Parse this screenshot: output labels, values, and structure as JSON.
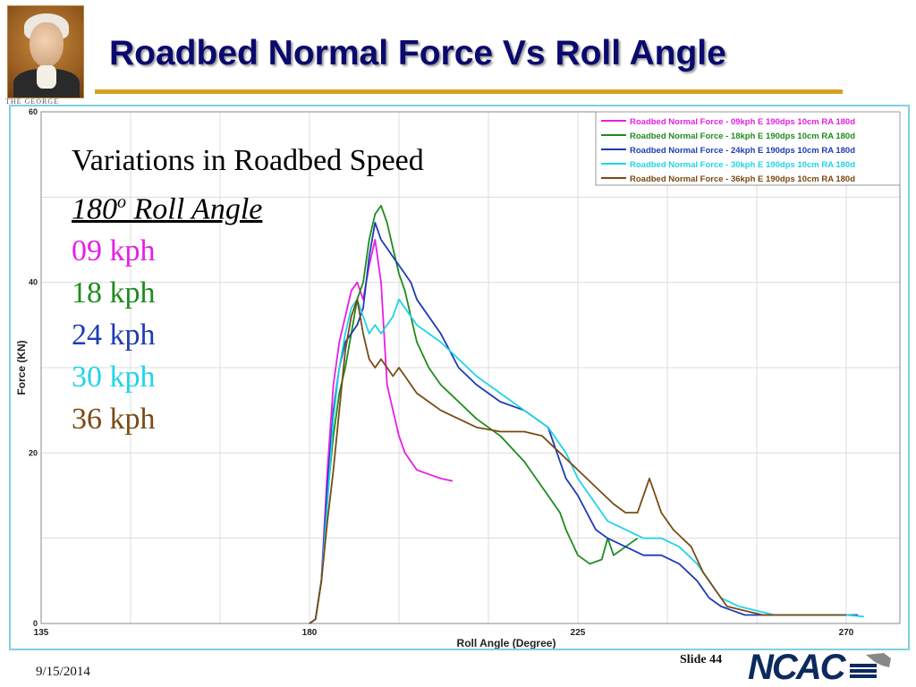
{
  "slide": {
    "title": "Roadbed Normal Force Vs Roll Angle",
    "logo_text": "THE GEORGE",
    "date": "9/15/2014",
    "slide_number": "Slide 44",
    "org_logo": "NCAC"
  },
  "annotation": {
    "line1": "Variations in Roadbed Speed",
    "line2_value": "180",
    "line2_sup": "o",
    "line2_rest": " Roll Angle",
    "speeds": [
      {
        "label": "09 kph",
        "color": "#e61ee6"
      },
      {
        "label": "18 kph",
        "color": "#1e8c1e"
      },
      {
        "label": "24 kph",
        "color": "#1e3cb4"
      },
      {
        "label": "30 kph",
        "color": "#20d4e8"
      },
      {
        "label": "36 kph",
        "color": "#7a4a14"
      }
    ]
  },
  "chart_data": {
    "type": "line",
    "title": "",
    "xlabel": "Roll Angle (Degree)",
    "ylabel": "Force (KN)",
    "xlim": [
      135,
      279
    ],
    "ylim": [
      0,
      60
    ],
    "xticks": [
      135,
      180,
      225,
      270
    ],
    "yticks": [
      0,
      20,
      40,
      60
    ],
    "grid": true,
    "legend_position": "top-right",
    "series": [
      {
        "name": "Roadbed Normal Force - 09kph E 190dps 10cm RA 180d",
        "color": "#e61ee6",
        "points": [
          [
            180,
            0
          ],
          [
            181,
            0.5
          ],
          [
            182,
            5
          ],
          [
            183,
            18
          ],
          [
            184,
            28
          ],
          [
            185,
            33
          ],
          [
            186,
            36
          ],
          [
            187,
            39
          ],
          [
            188,
            40
          ],
          [
            189,
            38
          ],
          [
            190,
            42
          ],
          [
            191,
            45
          ],
          [
            192,
            40
          ],
          [
            193,
            28
          ],
          [
            194,
            25
          ],
          [
            195,
            22
          ],
          [
            196,
            20
          ],
          [
            198,
            18
          ],
          [
            200,
            17.5
          ],
          [
            202,
            17
          ],
          [
            204,
            16.7
          ]
        ]
      },
      {
        "name": "Roadbed Normal Force - 18kph E 190dps 10cm RA 180d",
        "color": "#1e8c1e",
        "points": [
          [
            180,
            0
          ],
          [
            181,
            0.5
          ],
          [
            182,
            5
          ],
          [
            183,
            15
          ],
          [
            184,
            22
          ],
          [
            185,
            27
          ],
          [
            186,
            30
          ],
          [
            187,
            34
          ],
          [
            188,
            38
          ],
          [
            189,
            40
          ],
          [
            190,
            45
          ],
          [
            191,
            48
          ],
          [
            192,
            49
          ],
          [
            193,
            47
          ],
          [
            194,
            44
          ],
          [
            195,
            41
          ],
          [
            196,
            39
          ],
          [
            197,
            36
          ],
          [
            198,
            33
          ],
          [
            200,
            30
          ],
          [
            202,
            28
          ],
          [
            205,
            26
          ],
          [
            208,
            24
          ],
          [
            212,
            22
          ],
          [
            216,
            19
          ],
          [
            220,
            15
          ],
          [
            222,
            13
          ],
          [
            223,
            11
          ],
          [
            225,
            8
          ],
          [
            227,
            7
          ],
          [
            229,
            7.5
          ],
          [
            230,
            10
          ],
          [
            231,
            8
          ],
          [
            233,
            9
          ],
          [
            235,
            10
          ]
        ]
      },
      {
        "name": "Roadbed Normal Force - 24kph E 190dps 10cm RA 180d",
        "color": "#1e3cb4",
        "points": [
          [
            180,
            0
          ],
          [
            181,
            0.5
          ],
          [
            182,
            5
          ],
          [
            183,
            16
          ],
          [
            184,
            25
          ],
          [
            185,
            30
          ],
          [
            186,
            33
          ],
          [
            187,
            34
          ],
          [
            188,
            35
          ],
          [
            189,
            37
          ],
          [
            190,
            43
          ],
          [
            191,
            47
          ],
          [
            192,
            45
          ],
          [
            193,
            44
          ],
          [
            194,
            43
          ],
          [
            195,
            42
          ],
          [
            196,
            41
          ],
          [
            197,
            40
          ],
          [
            198,
            38
          ],
          [
            200,
            36
          ],
          [
            202,
            34
          ],
          [
            205,
            30
          ],
          [
            208,
            28
          ],
          [
            212,
            26
          ],
          [
            216,
            25
          ],
          [
            220,
            23
          ],
          [
            223,
            17
          ],
          [
            225,
            15
          ],
          [
            228,
            11
          ],
          [
            230,
            10
          ],
          [
            233,
            9
          ],
          [
            236,
            8
          ],
          [
            239,
            8
          ],
          [
            242,
            7
          ],
          [
            245,
            5
          ],
          [
            247,
            3
          ],
          [
            249,
            2
          ],
          [
            251,
            1.5
          ],
          [
            253,
            1
          ],
          [
            256,
            1
          ],
          [
            260,
            1
          ],
          [
            265,
            1
          ],
          [
            270,
            1
          ],
          [
            272,
            1
          ]
        ]
      },
      {
        "name": "Roadbed Normal Force - 30kph E 190dps 10cm RA 180d",
        "color": "#20d4e8",
        "points": [
          [
            180,
            0
          ],
          [
            181,
            0.5
          ],
          [
            182,
            5
          ],
          [
            183,
            14
          ],
          [
            184,
            24
          ],
          [
            185,
            30
          ],
          [
            186,
            34
          ],
          [
            187,
            37
          ],
          [
            188,
            38
          ],
          [
            189,
            36
          ],
          [
            190,
            34
          ],
          [
            191,
            35
          ],
          [
            192,
            34
          ],
          [
            193,
            35
          ],
          [
            194,
            36
          ],
          [
            195,
            38
          ],
          [
            196,
            37
          ],
          [
            197,
            36
          ],
          [
            198,
            35
          ],
          [
            200,
            34
          ],
          [
            202,
            33
          ],
          [
            205,
            31
          ],
          [
            208,
            29
          ],
          [
            212,
            27
          ],
          [
            216,
            25
          ],
          [
            220,
            23
          ],
          [
            223,
            20
          ],
          [
            225,
            17
          ],
          [
            228,
            14
          ],
          [
            230,
            12
          ],
          [
            233,
            11
          ],
          [
            236,
            10
          ],
          [
            239,
            10
          ],
          [
            242,
            9
          ],
          [
            245,
            7
          ],
          [
            247,
            5
          ],
          [
            249,
            3
          ],
          [
            252,
            2
          ],
          [
            255,
            1.5
          ],
          [
            258,
            1
          ],
          [
            262,
            1
          ],
          [
            266,
            1
          ],
          [
            270,
            1
          ],
          [
            273,
            0.8
          ]
        ]
      },
      {
        "name": "Roadbed Normal Force - 36kph E 190dps 10cm RA 180d",
        "color": "#7a4a14",
        "points": [
          [
            180,
            0
          ],
          [
            181,
            0.5
          ],
          [
            182,
            5
          ],
          [
            183,
            12
          ],
          [
            184,
            18
          ],
          [
            185,
            25
          ],
          [
            186,
            32
          ],
          [
            187,
            36
          ],
          [
            188,
            38
          ],
          [
            189,
            34
          ],
          [
            190,
            31
          ],
          [
            191,
            30
          ],
          [
            192,
            31
          ],
          [
            193,
            30
          ],
          [
            194,
            29
          ],
          [
            195,
            30
          ],
          [
            196,
            29
          ],
          [
            197,
            28
          ],
          [
            198,
            27
          ],
          [
            200,
            26
          ],
          [
            202,
            25
          ],
          [
            205,
            24
          ],
          [
            208,
            23
          ],
          [
            212,
            22.5
          ],
          [
            216,
            22.5
          ],
          [
            219,
            22
          ],
          [
            222,
            20
          ],
          [
            225,
            18
          ],
          [
            228,
            16
          ],
          [
            231,
            14
          ],
          [
            233,
            13
          ],
          [
            235,
            13
          ],
          [
            237,
            17
          ],
          [
            238,
            15
          ],
          [
            239,
            13
          ],
          [
            241,
            11
          ],
          [
            244,
            9
          ],
          [
            246,
            6
          ],
          [
            248,
            4
          ],
          [
            250,
            2
          ],
          [
            253,
            1.5
          ],
          [
            256,
            1
          ],
          [
            260,
            1
          ],
          [
            265,
            1
          ],
          [
            268,
            1
          ],
          [
            270,
            1
          ]
        ]
      }
    ]
  }
}
